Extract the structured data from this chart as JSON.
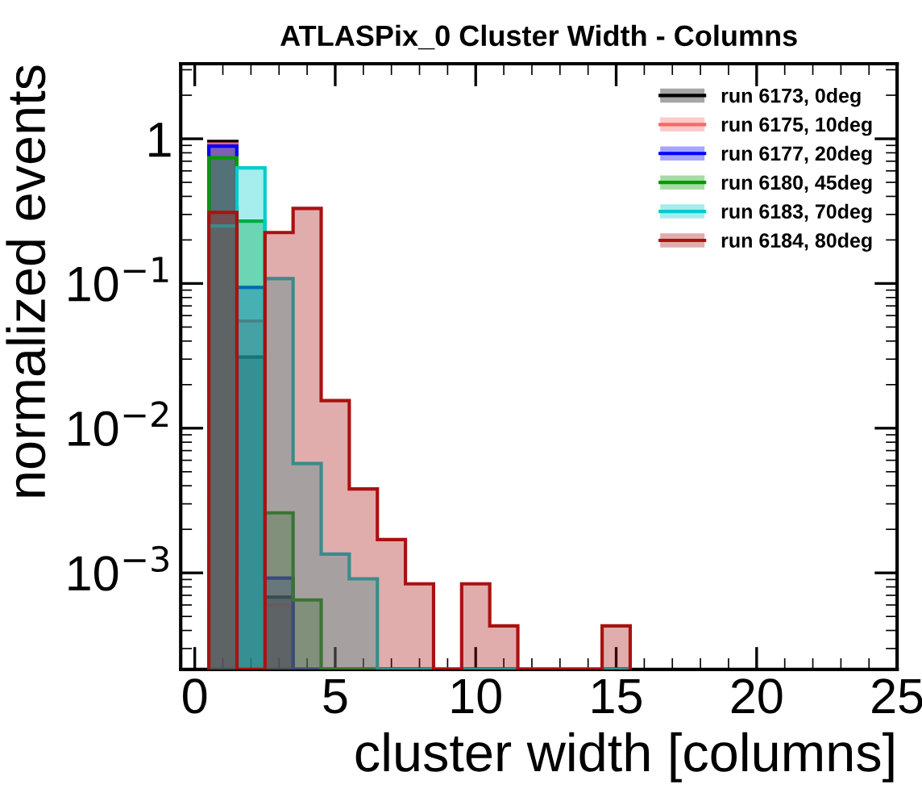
{
  "chart_data": {
    "type": "histogram",
    "title": "ATLASPix_0 Cluster Width - Columns",
    "xlabel": "cluster width [columns]",
    "ylabel": "normalized events",
    "bins": [
      0.5,
      1.5,
      2.5,
      3.5,
      4.5,
      5.5,
      6.5,
      7.5,
      8.5,
      9.5,
      10.5,
      11.5,
      12.5,
      13.5,
      14.5,
      15.5
    ],
    "series": [
      {
        "name": "run 6173, 0deg",
        "color": "#000000",
        "values": [
          0.96,
          0.031,
          0.00068,
          null,
          null,
          null,
          null,
          null,
          null,
          null,
          null,
          null,
          null,
          null,
          null
        ]
      },
      {
        "name": "run 6175, 10deg",
        "color": "#ff6666",
        "values": [
          0.92,
          0.055,
          0.0006,
          null,
          null,
          null,
          null,
          null,
          null,
          null,
          null,
          null,
          null,
          null,
          null
        ]
      },
      {
        "name": "run 6177, 20deg",
        "color": "#0000ff",
        "values": [
          0.89,
          0.094,
          0.00092,
          null,
          null,
          null,
          null,
          null,
          null,
          null,
          null,
          null,
          null,
          null,
          null
        ]
      },
      {
        "name": "run 6180, 45deg",
        "color": "#009900",
        "values": [
          0.74,
          0.27,
          0.0026,
          0.00065,
          null,
          null,
          null,
          null,
          null,
          null,
          null,
          null,
          null,
          null,
          null
        ]
      },
      {
        "name": "run 6183, 70deg",
        "color": "#00cccc",
        "values": [
          0.25,
          0.63,
          0.108,
          0.0057,
          0.00135,
          0.00091,
          null,
          null,
          null,
          null,
          null,
          null,
          null,
          null,
          null
        ]
      },
      {
        "name": "run 6184, 80deg",
        "color": "#aa1111",
        "values": [
          0.31,
          null,
          0.225,
          0.33,
          0.0155,
          0.0038,
          0.0017,
          0.00084,
          null,
          0.00084,
          0.00043,
          null,
          null,
          null,
          0.00043
        ]
      }
    ],
    "xlim": [
      -0.5,
      25
    ],
    "ylim": [
      0.000215,
      3.3
    ],
    "xticks": [
      0,
      5,
      10,
      15,
      20,
      25
    ],
    "yticks": [
      {
        "value": 0.001,
        "label": "10$^{−3}$"
      },
      {
        "value": 0.01,
        "label": "10$^{−2}$"
      },
      {
        "value": 0.1,
        "label": "10$^{−1}$"
      },
      1
    ],
    "log": "y",
    "grid": false,
    "legend": "top right"
  }
}
